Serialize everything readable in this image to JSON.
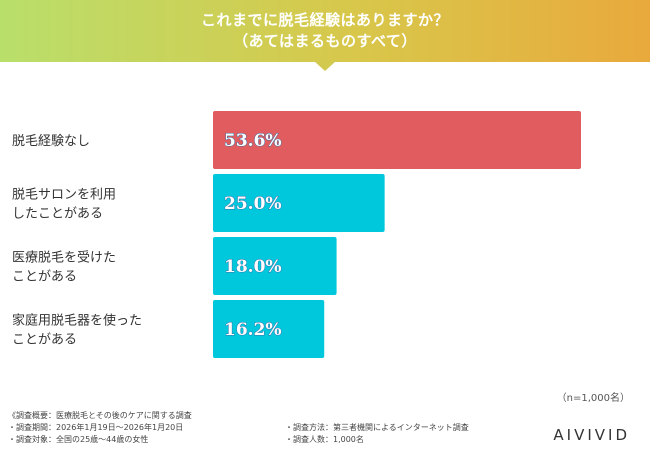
{
  "header": {
    "title_line1": "これまでに脱毛経験はありますか？",
    "title_line2": "（あてはまるものすべて）"
  },
  "chart_data": {
    "type": "bar",
    "orientation": "horizontal",
    "categories": [
      [
        "脱毛経験なし"
      ],
      [
        "脱毛サロンを利用",
        "したことがある"
      ],
      [
        "医療脱毛を受けた",
        "ことがある"
      ],
      [
        "家庭用脱毛器を使った",
        "ことがある"
      ]
    ],
    "values": [
      53.6,
      25.0,
      18.0,
      16.2
    ],
    "value_labels": [
      "53.6%",
      "25.0%",
      "18.0%",
      "16.2%"
    ],
    "xlim": [
      0,
      55
    ],
    "colors": [
      "#e05c5e",
      "#00c8dc",
      "#00c8dc",
      "#00c8dc"
    ],
    "grid": false
  },
  "footer": {
    "n_count": "（n=1,000名）",
    "notes_left": [
      "《調査概要：医療脱毛とその後のケアに関する調査",
      "・調査期間：2026年1月19日～2026年1月20日",
      "・調査対象：全国の25歳～44歳の女性"
    ],
    "notes_right": [
      "・調査方法：第三者機関によるインターネット調査",
      "・調査人数：1,000名"
    ],
    "logo": "AIVIVID"
  }
}
